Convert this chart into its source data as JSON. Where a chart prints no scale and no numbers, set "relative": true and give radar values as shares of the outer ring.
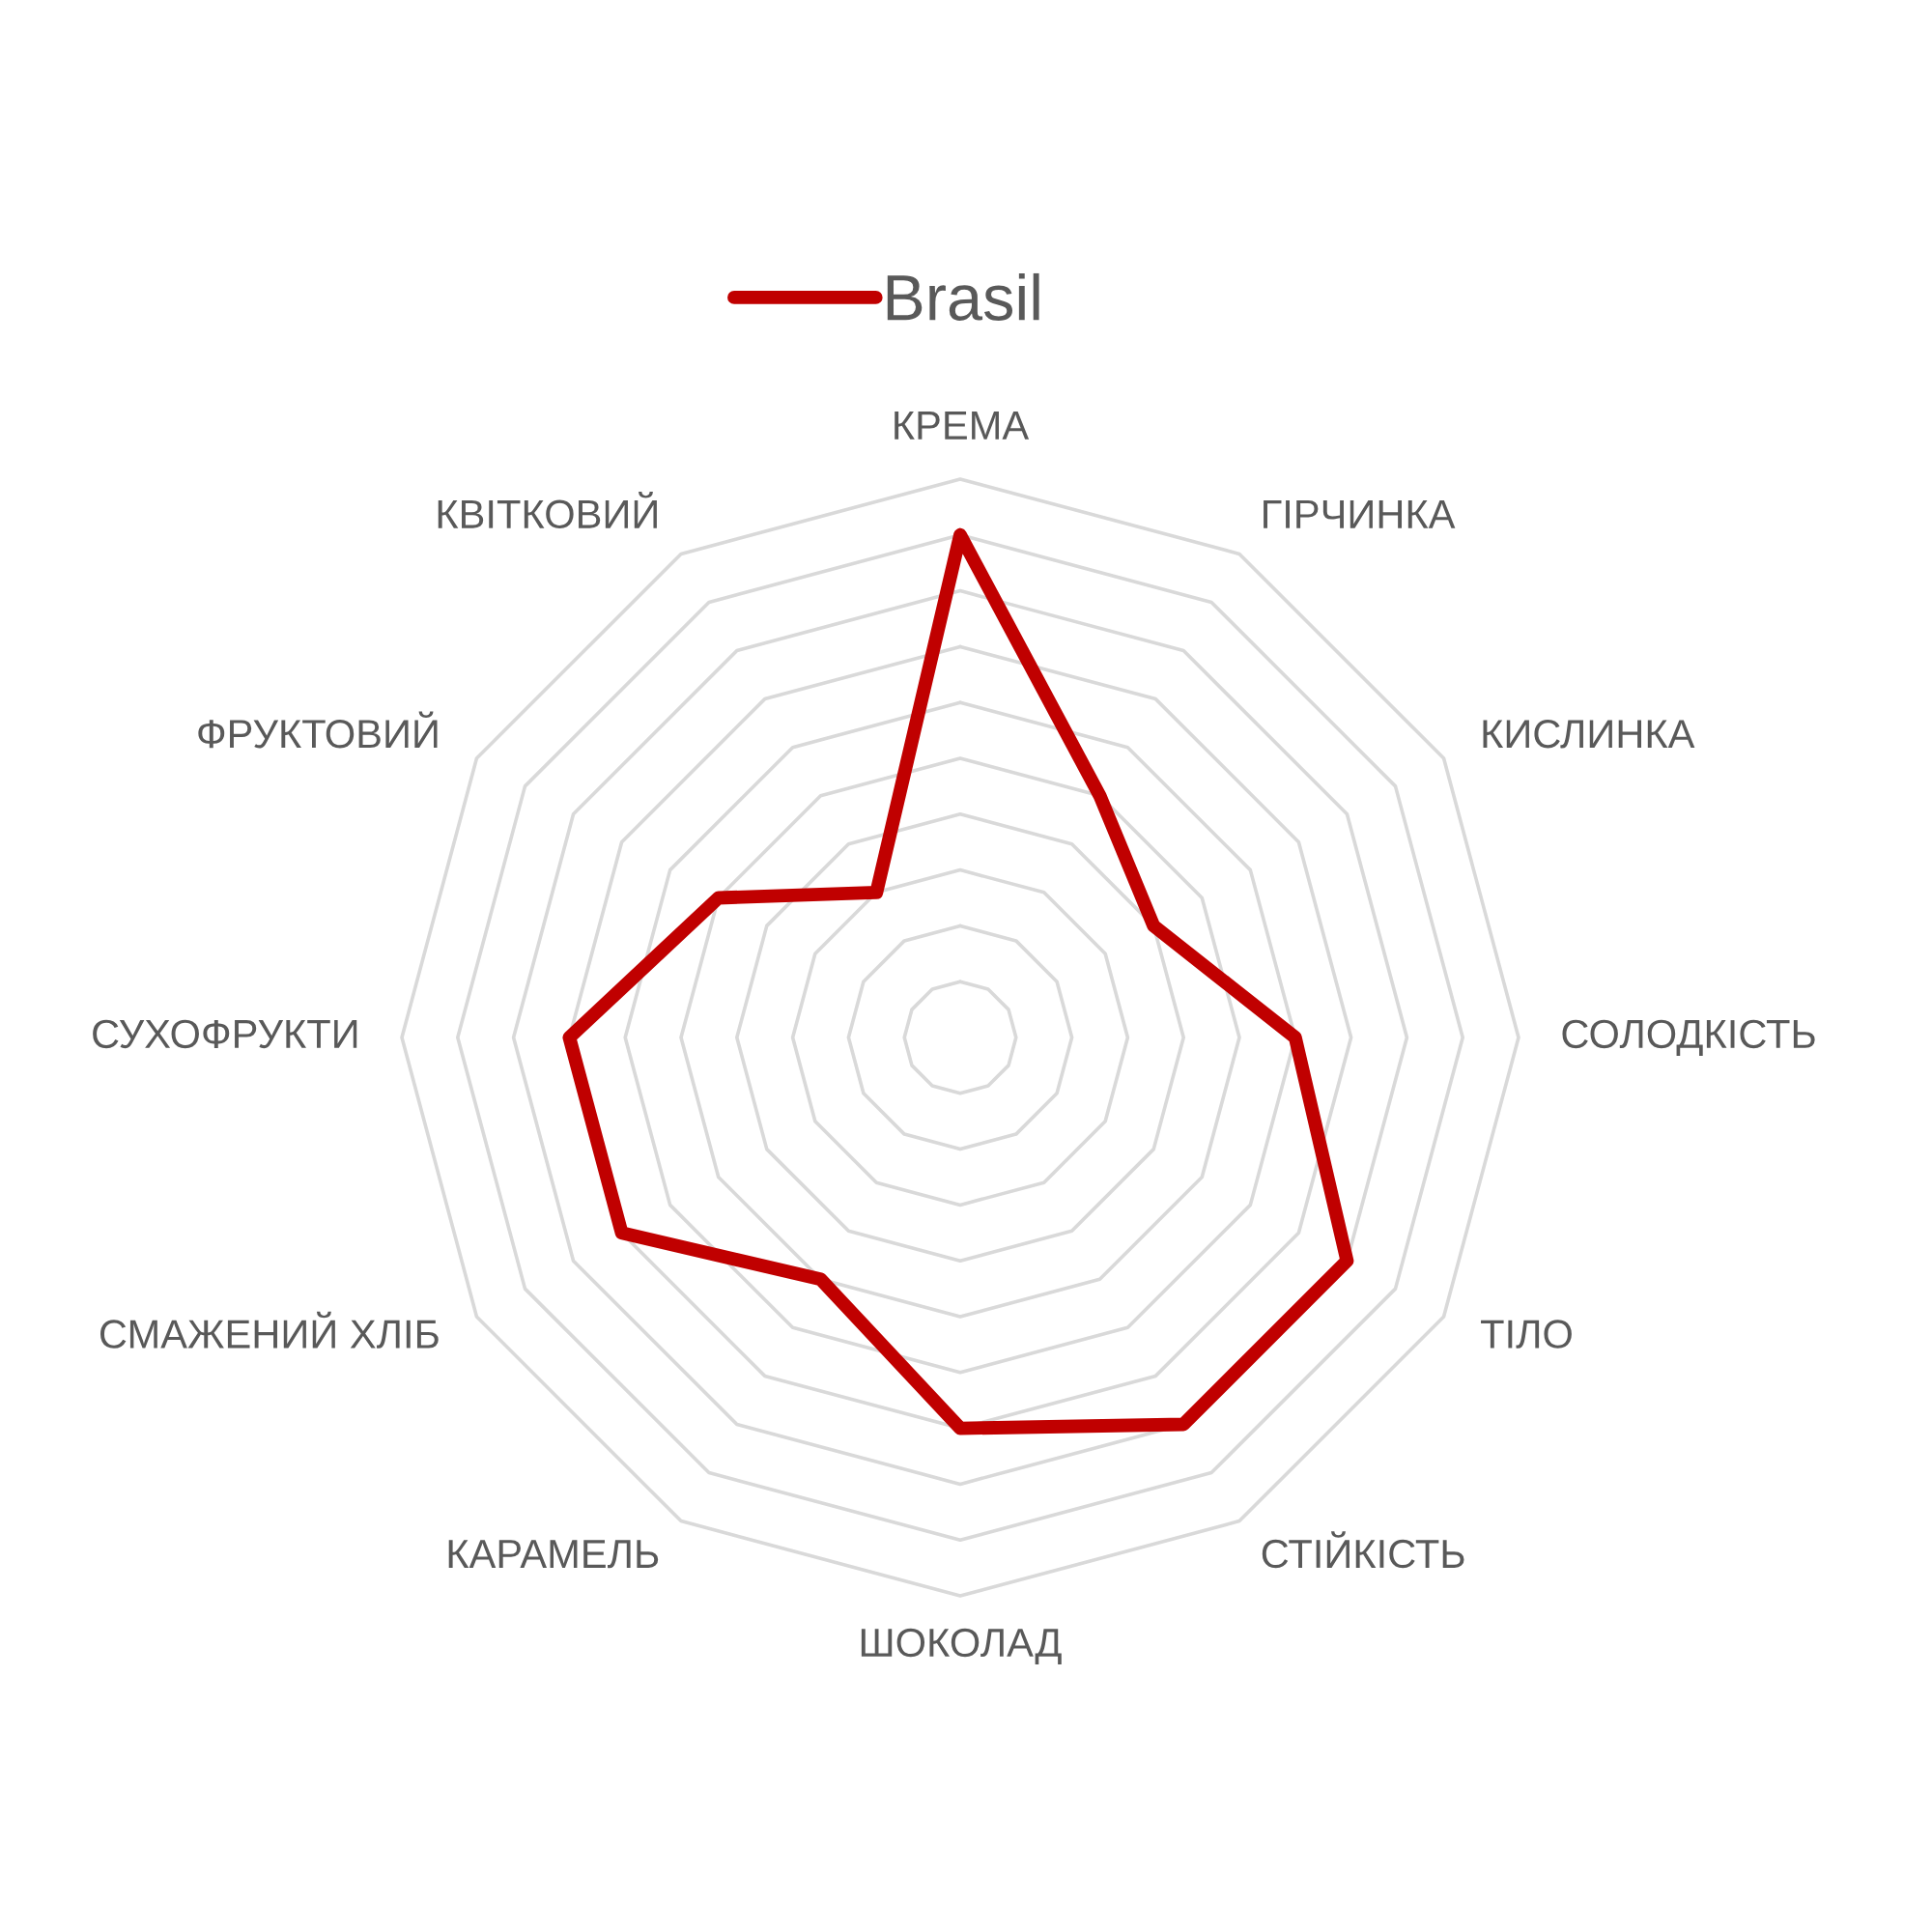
{
  "chart_data": {
    "type": "radar",
    "relative": true,
    "grid": true,
    "legend": "top",
    "marker": "none",
    "line_style": "solid",
    "categories": [
      "КРЕМА",
      "ГІРЧИНКА",
      "КИСЛИНКА",
      "СОЛОДКІСТЬ",
      "ТІЛО",
      "СТІЙКІСТЬ",
      "ШОКОЛАД",
      "КАРАМЕЛЬ",
      "СМАЖЕНИЙ ХЛІБ",
      "СУХОФРУКТИ",
      "ФРУКТОВИЙ",
      "КВІТКОВИЙ"
    ],
    "series": [
      {
        "name": "Brasil",
        "color": "#c00000",
        "values": [
          0.9,
          0.5,
          0.4,
          0.6,
          0.8,
          0.8,
          0.7,
          0.5,
          0.7,
          0.7,
          0.5,
          0.3
        ]
      }
    ]
  }
}
